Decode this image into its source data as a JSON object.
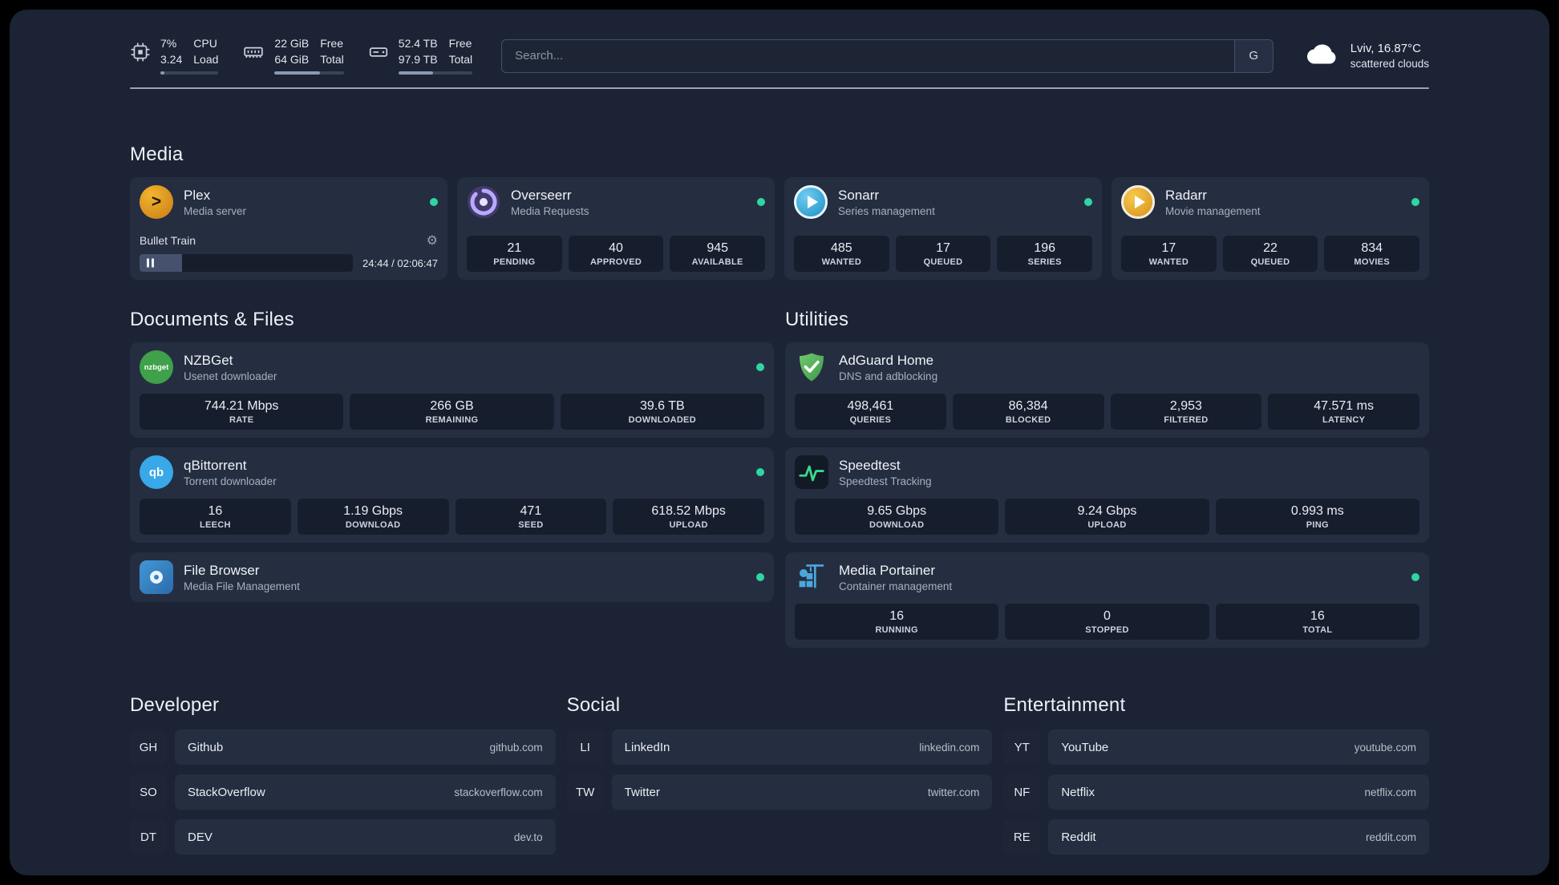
{
  "colors": {
    "status_dot": "#2fd6a3",
    "background": "#1b2334",
    "card": "#252e40"
  },
  "topbar": {
    "cpu": {
      "value1": "7%",
      "value2": "3.24",
      "label1": "CPU",
      "label2": "Load",
      "percent": 7
    },
    "memory": {
      "value1": "22 GiB",
      "value2": "64 GiB",
      "label1": "Free",
      "label2": "Total",
      "percent": 66
    },
    "disk": {
      "value1": "52.4 TB",
      "value2": "97.9 TB",
      "label1": "Free",
      "label2": "Total",
      "percent": 47
    },
    "search": {
      "placeholder": "Search...",
      "button": "G"
    },
    "weather": {
      "location": "Lviv, 16.87°C",
      "condition": "scattered clouds"
    }
  },
  "media": {
    "title": "Media",
    "plex": {
      "name": "Plex",
      "desc": "Media server",
      "player": {
        "track": "Bullet Train",
        "time": "24:44 / 02:06:47",
        "progress": 20
      }
    },
    "overseerr": {
      "name": "Overseerr",
      "desc": "Media Requests",
      "stats": [
        {
          "value": "21",
          "label": "PENDING"
        },
        {
          "value": "40",
          "label": "APPROVED"
        },
        {
          "value": "945",
          "label": "AVAILABLE"
        }
      ]
    },
    "sonarr": {
      "name": "Sonarr",
      "desc": "Series management",
      "stats": [
        {
          "value": "485",
          "label": "WANTED"
        },
        {
          "value": "17",
          "label": "QUEUED"
        },
        {
          "value": "196",
          "label": "SERIES"
        }
      ]
    },
    "radarr": {
      "name": "Radarr",
      "desc": "Movie management",
      "stats": [
        {
          "value": "17",
          "label": "WANTED"
        },
        {
          "value": "22",
          "label": "QUEUED"
        },
        {
          "value": "834",
          "label": "MOVIES"
        }
      ]
    }
  },
  "documents": {
    "title": "Documents & Files",
    "nzbget": {
      "name": "NZBGet",
      "desc": "Usenet downloader",
      "stats": [
        {
          "value": "744.21 Mbps",
          "label": "RATE"
        },
        {
          "value": "266 GB",
          "label": "REMAINING"
        },
        {
          "value": "39.6 TB",
          "label": "DOWNLOADED"
        }
      ]
    },
    "qbittorrent": {
      "name": "qBittorrent",
      "desc": "Torrent downloader",
      "stats": [
        {
          "value": "16",
          "label": "LEECH"
        },
        {
          "value": "1.19 Gbps",
          "label": "DOWNLOAD"
        },
        {
          "value": "471",
          "label": "SEED"
        },
        {
          "value": "618.52 Mbps",
          "label": "UPLOAD"
        }
      ]
    },
    "filebrowser": {
      "name": "File Browser",
      "desc": "Media File Management"
    }
  },
  "utilities": {
    "title": "Utilities",
    "adguard": {
      "name": "AdGuard Home",
      "desc": "DNS and adblocking",
      "stats": [
        {
          "value": "498,461",
          "label": "QUERIES"
        },
        {
          "value": "86,384",
          "label": "BLOCKED"
        },
        {
          "value": "2,953",
          "label": "FILTERED"
        },
        {
          "value": "47.571 ms",
          "label": "LATENCY"
        }
      ]
    },
    "speedtest": {
      "name": "Speedtest",
      "desc": "Speedtest Tracking",
      "stats": [
        {
          "value": "9.65 Gbps",
          "label": "DOWNLOAD"
        },
        {
          "value": "9.24 Gbps",
          "label": "UPLOAD"
        },
        {
          "value": "0.993 ms",
          "label": "PING"
        }
      ]
    },
    "portainer": {
      "name": "Media Portainer",
      "desc": "Container management",
      "stats": [
        {
          "value": "16",
          "label": "RUNNING"
        },
        {
          "value": "0",
          "label": "STOPPED"
        },
        {
          "value": "16",
          "label": "TOTAL"
        }
      ]
    }
  },
  "bookmarks": {
    "developer": {
      "title": "Developer",
      "items": [
        {
          "abbr": "GH",
          "name": "Github",
          "url": "github.com"
        },
        {
          "abbr": "SO",
          "name": "StackOverflow",
          "url": "stackoverflow.com"
        },
        {
          "abbr": "DT",
          "name": "DEV",
          "url": "dev.to"
        }
      ]
    },
    "social": {
      "title": "Social",
      "items": [
        {
          "abbr": "LI",
          "name": "LinkedIn",
          "url": "linkedin.com"
        },
        {
          "abbr": "TW",
          "name": "Twitter",
          "url": "twitter.com"
        }
      ]
    },
    "entertainment": {
      "title": "Entertainment",
      "items": [
        {
          "abbr": "YT",
          "name": "YouTube",
          "url": "youtube.com"
        },
        {
          "abbr": "NF",
          "name": "Netflix",
          "url": "netflix.com"
        },
        {
          "abbr": "RE",
          "name": "Reddit",
          "url": "reddit.com"
        }
      ]
    }
  }
}
